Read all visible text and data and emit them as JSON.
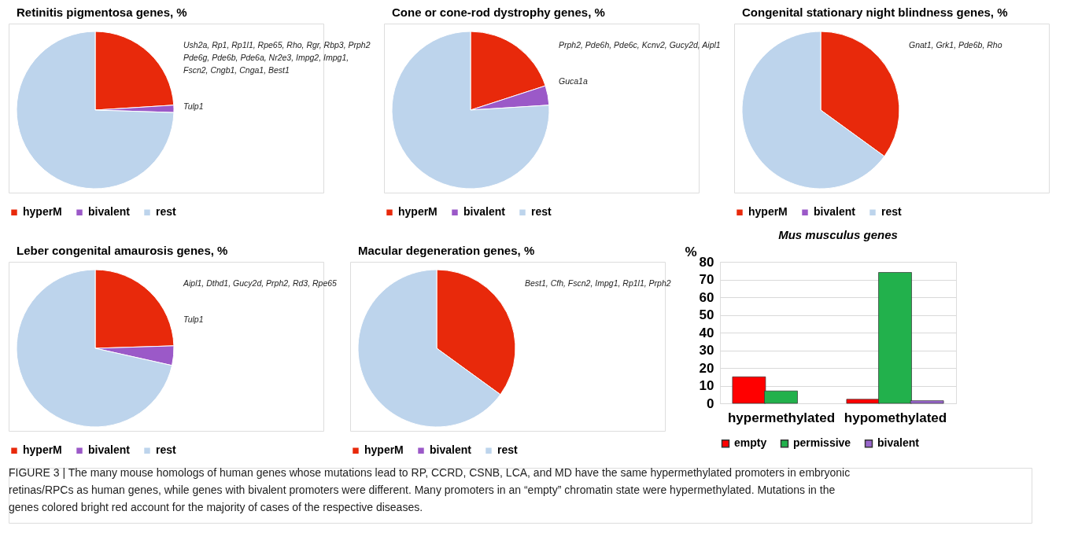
{
  "chart_data": [
    {
      "type": "pie",
      "title": "Retinitis pigmentosa genes, %",
      "categories": [
        "hyperM",
        "bivalent",
        "rest"
      ],
      "values": [
        24,
        1.5,
        74.5
      ],
      "colors": [
        "#e8290b",
        "#9b59c8",
        "#bdd4ec"
      ],
      "legend": "bottom",
      "annotations": [
        "Ush2a, Rp1, Rp1l1, Rpe65, Rho, Rgr, Rbp3, Prph2",
        "Pde6g, Pde6b, Pde6a, Nr2e3, Impg2, Impg1,",
        "Fscn2, Cngb1, Cnga1, Best1",
        "Tulp1"
      ]
    },
    {
      "type": "pie",
      "title": "Cone or cone-rod dystrophy genes, %",
      "categories": [
        "hyperM",
        "bivalent",
        "rest"
      ],
      "values": [
        20,
        4,
        76
      ],
      "colors": [
        "#e8290b",
        "#9b59c8",
        "#bdd4ec"
      ],
      "legend": "bottom",
      "annotations": [
        "Prph2, Pde6h, Pde6c, Kcnv2, Gucy2d, Aipl1",
        "Guca1a"
      ]
    },
    {
      "type": "pie",
      "title": "Congenital stationary night blindness genes, %",
      "categories": [
        "hyperM",
        "bivalent",
        "rest"
      ],
      "values": [
        35,
        0,
        65
      ],
      "colors": [
        "#e8290b",
        "#9b59c8",
        "#bdd4ec"
      ],
      "legend": "bottom",
      "annotations": [
        "Gnat1, Grk1, Pde6b, Rho"
      ]
    },
    {
      "type": "pie",
      "title": "Leber congenital amaurosis genes, %",
      "categories": [
        "hyperM",
        "bivalent",
        "rest"
      ],
      "values": [
        24.5,
        4,
        71.5
      ],
      "colors": [
        "#e8290b",
        "#9b59c8",
        "#bdd4ec"
      ],
      "legend": "bottom",
      "annotations": [
        "Aipl1, Dthd1, Gucy2d, Prph2, Rd3, Rpe65",
        "Tulp1"
      ]
    },
    {
      "type": "pie",
      "title": "Macular degeneration genes, %",
      "categories": [
        "hyperM",
        "bivalent",
        "rest"
      ],
      "values": [
        35,
        0,
        65
      ],
      "colors": [
        "#e8290b",
        "#9b59c8",
        "#bdd4ec"
      ],
      "legend": "bottom",
      "annotations": [
        "Best1, Cfh, Fscn2, Impg1, Rp1l1, Prph2"
      ]
    },
    {
      "type": "bar",
      "title": "Mus musculus genes",
      "ylabel": "%",
      "categories": [
        "hypermethylated",
        "hypomethylated"
      ],
      "ylim": [
        0,
        80
      ],
      "yticks": [
        0,
        10,
        20,
        30,
        40,
        50,
        60,
        70,
        80
      ],
      "grid": "y",
      "legend": "bottom",
      "series": [
        {
          "name": "empty",
          "color": "#ff0000",
          "values": [
            15,
            2.3
          ]
        },
        {
          "name": "permissive",
          "color": "#22b14c",
          "values": [
            7,
            74
          ]
        },
        {
          "name": "bivalent",
          "color": "#9966cc",
          "values": [
            null,
            1.5
          ]
        }
      ],
      "annotations": [
        "FIGURE 3 | The many mouse homologs of human genes whose mutations lead to RP, CCRD, CSNB, LCA, and MD have the same hypermethylated promoters in embryonic retinas/RPCs as human genes, while genes with bivalent promoters were different. Many promoters in an “empty” chromatin state were hypermethylated. Mutations in the genes colored bright red account for the majority of cases of the respective diseases."
      ]
    }
  ]
}
